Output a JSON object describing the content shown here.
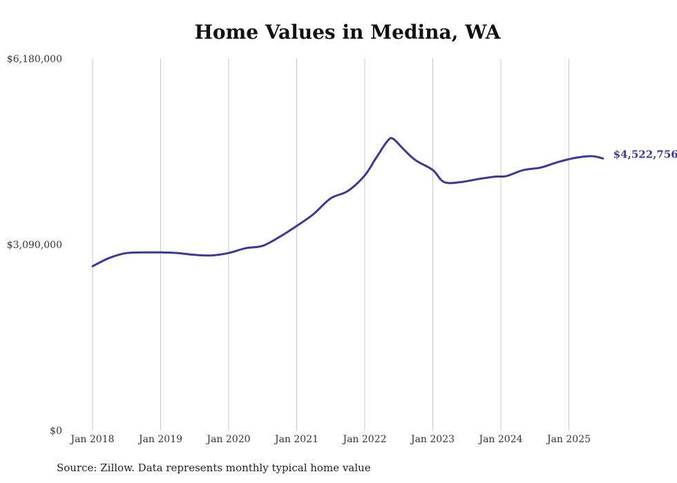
{
  "chart_data": {
    "type": "line",
    "title": "Home Values in Medina, WA",
    "source": "Source: Zillow. Data represents monthly typical home value",
    "xlabel": "",
    "ylabel": "",
    "ylim": [
      0,
      6180000
    ],
    "y_ticks": [
      {
        "value": 0,
        "label": "$0"
      },
      {
        "value": 3090000,
        "label": "$3,090,000"
      },
      {
        "value": 6180000,
        "label": "$6,180,000"
      }
    ],
    "x_ticks": [
      {
        "value": "2018-01",
        "label": "Jan 2018"
      },
      {
        "value": "2019-01",
        "label": "Jan 2019"
      },
      {
        "value": "2020-01",
        "label": "Jan 2020"
      },
      {
        "value": "2021-01",
        "label": "Jan 2021"
      },
      {
        "value": "2022-01",
        "label": "Jan 2022"
      },
      {
        "value": "2023-01",
        "label": "Jan 2023"
      },
      {
        "value": "2024-01",
        "label": "Jan 2024"
      },
      {
        "value": "2025-01",
        "label": "Jan 2025"
      }
    ],
    "grid": {
      "vertical": true,
      "horizontal": false
    },
    "line_color": "#3c3899",
    "end_label": "$4,522,756",
    "series": [
      {
        "x": [
          "2018-01",
          "2018-04",
          "2018-07",
          "2018-10",
          "2019-01",
          "2019-04",
          "2019-07",
          "2019-10",
          "2020-01",
          "2020-04",
          "2020-07",
          "2020-10",
          "2021-01",
          "2021-04",
          "2021-07",
          "2021-10",
          "2022-01",
          "2022-03",
          "2022-05",
          "2022-06",
          "2022-08",
          "2022-10",
          "2023-01",
          "2023-03",
          "2023-06",
          "2023-09",
          "2023-12",
          "2024-02",
          "2024-05",
          "2024-08",
          "2024-11",
          "2025-02",
          "2025-05",
          "2025-07"
        ],
        "values": [
          2730000,
          2870000,
          2950000,
          2960000,
          2960000,
          2950000,
          2920000,
          2910000,
          2950000,
          3030000,
          3070000,
          3220000,
          3400000,
          3600000,
          3860000,
          3980000,
          4240000,
          4530000,
          4810000,
          4850000,
          4660000,
          4490000,
          4330000,
          4130000,
          4130000,
          4180000,
          4220000,
          4230000,
          4330000,
          4370000,
          4460000,
          4530000,
          4560000,
          4522756
        ]
      }
    ]
  }
}
